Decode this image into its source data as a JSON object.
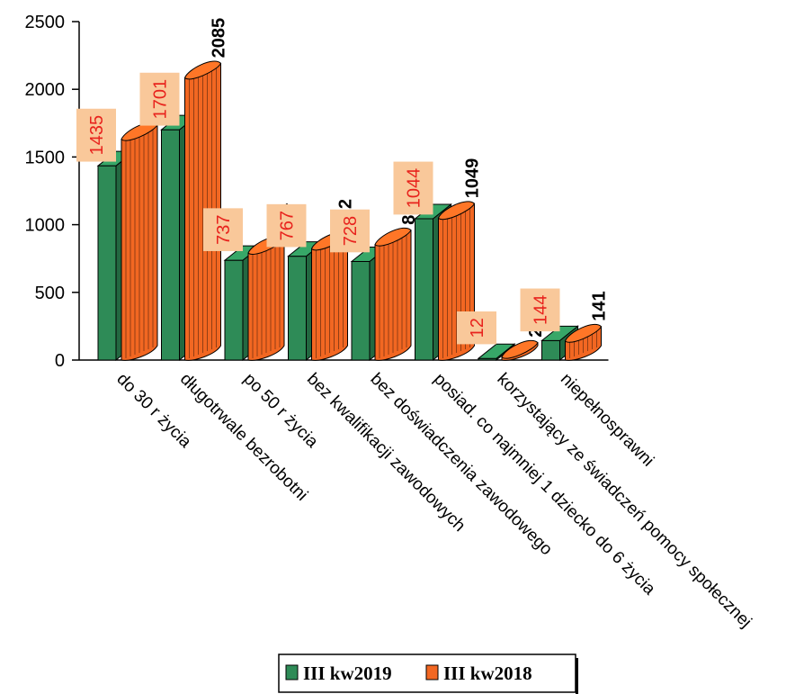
{
  "chart_data": {
    "type": "bar",
    "style": "3d-cylinder",
    "categories": [
      "do 30 r życia",
      "długotrwale bezrobotni",
      "po 50 r życia",
      "bez kwalifikacji zawodowych",
      "bez doświadczenia zawodowego",
      "posiad. co najmniej 1 dziecko do 6 życia",
      "korzystający ze świadczeń pomocy społecznej",
      "niepełnosprawni"
    ],
    "series": [
      {
        "name": "III kw2019",
        "values": [
          1435,
          1701,
          737,
          767,
          728,
          1044,
          12,
          144
        ],
        "color": "#2e8b57",
        "label_color": "#e8231d",
        "label_bg": "#f9c89a"
      },
      {
        "name": "III kw2018",
        "values": [
          1631,
          2085,
          791,
          822,
          853,
          1049,
          22,
          141
        ],
        "color": "#f26722",
        "label_color": "#000000"
      }
    ],
    "ylim": [
      0,
      2500
    ],
    "yticks": [
      0,
      500,
      1000,
      1500,
      2000,
      2500
    ],
    "legend_position": "bottom",
    "grid": false
  }
}
